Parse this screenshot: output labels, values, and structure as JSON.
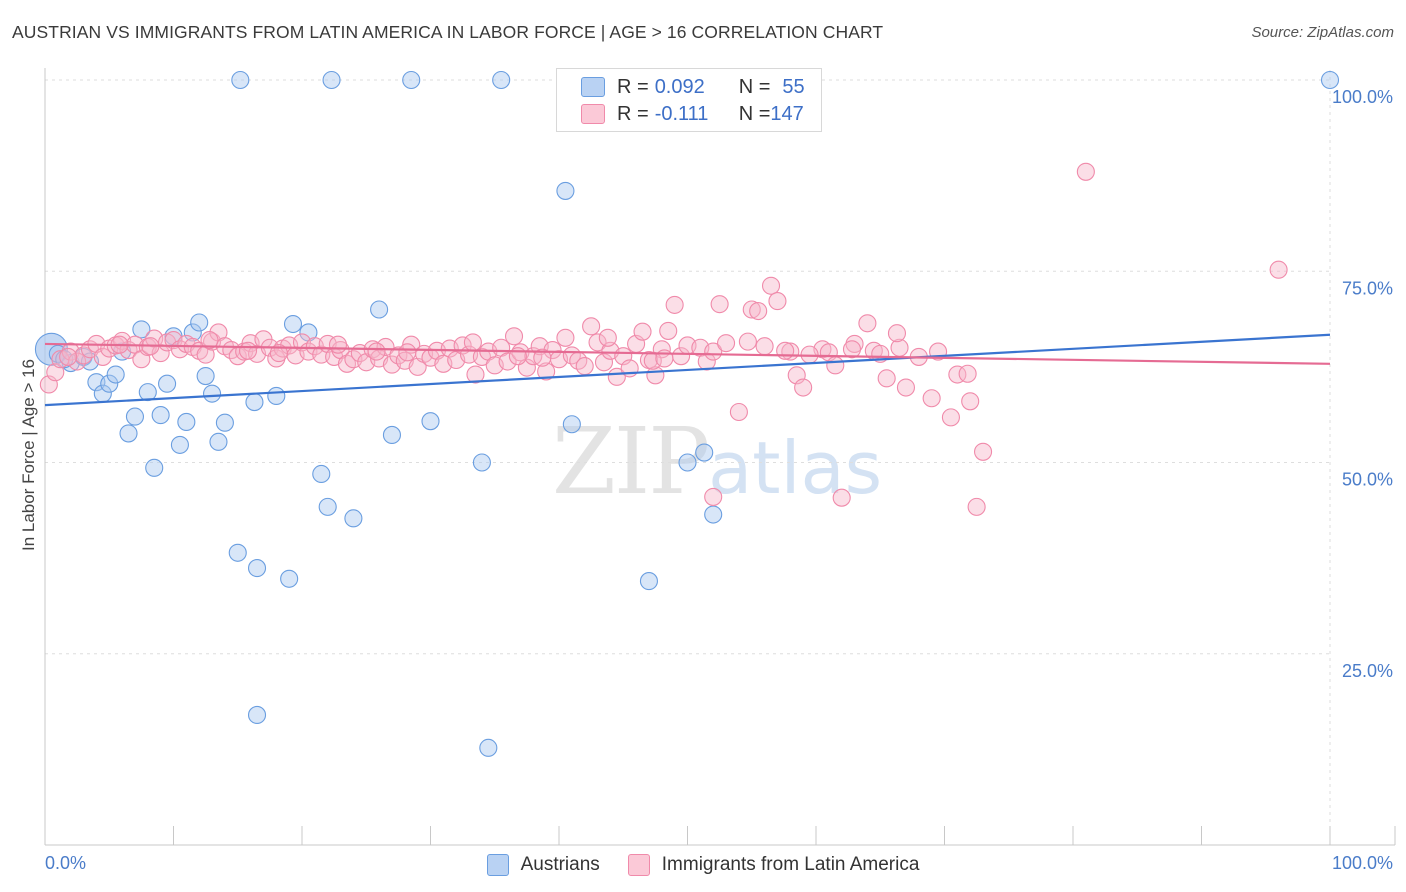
{
  "header": {
    "title": "AUSTRIAN VS IMMIGRANTS FROM LATIN AMERICA IN LABOR FORCE | AGE > 16 CORRELATION CHART",
    "source": "Source: ZipAtlas.com"
  },
  "watermark": {
    "zip": "ZIP",
    "atlas": "atlas"
  },
  "legend": {
    "rows": [
      {
        "r_label": "R = ",
        "r_value": "0.092",
        "n_label": "N = ",
        "n_value": "55",
        "color": "#a9c7f0"
      },
      {
        "r_label": "R = ",
        "r_value": "-0.111",
        "n_label": "N = ",
        "n_value": "147",
        "color": "#f7b5c9"
      }
    ]
  },
  "chart_data": {
    "type": "scatter",
    "ylabel": "In Labor Force | Age > 16",
    "x_tick_labels": [
      "0.0%",
      "100.0%"
    ],
    "y_tick_labels": [
      "100.0%",
      "75.0%",
      "50.0%",
      "25.0%"
    ],
    "y_tick_values": [
      100,
      75,
      50,
      25
    ],
    "xlim": [
      0,
      100
    ],
    "ylim": [
      0,
      100
    ],
    "grid": "horizontal-dashed",
    "series": [
      {
        "name": "Austrians",
        "color": "#6a9ee0",
        "fill": "#a9c7f0",
        "trend": {
          "x": [
            0,
            100
          ],
          "y": [
            57.5,
            66.7
          ],
          "color": "#3a74d0"
        },
        "points": [
          [
            0.5,
            64.8
          ],
          [
            1,
            64.2
          ],
          [
            2,
            63
          ],
          [
            1.5,
            63.5
          ],
          [
            3,
            63.8
          ],
          [
            3.5,
            63.2
          ],
          [
            4,
            60.5
          ],
          [
            4.5,
            59
          ],
          [
            5,
            60.3
          ],
          [
            5.5,
            61.5
          ],
          [
            6,
            64.5
          ],
          [
            6.5,
            53.8
          ],
          [
            7,
            56
          ],
          [
            7.5,
            67.4
          ],
          [
            8,
            59.2
          ],
          [
            8.5,
            49.3
          ],
          [
            9,
            56.2
          ],
          [
            9.5,
            60.3
          ],
          [
            10,
            66.5
          ],
          [
            10.5,
            52.3
          ],
          [
            11,
            55.3
          ],
          [
            11.5,
            67
          ],
          [
            12,
            68.3
          ],
          [
            12.5,
            61.3
          ],
          [
            13,
            59
          ],
          [
            13.5,
            52.7
          ],
          [
            14,
            55.2
          ],
          [
            15,
            38.2
          ],
          [
            15.2,
            100
          ],
          [
            16.5,
            36.2
          ],
          [
            16.5,
            17
          ],
          [
            16.3,
            57.9
          ],
          [
            18,
            58.7
          ],
          [
            19,
            34.8
          ],
          [
            19.3,
            68.1
          ],
          [
            20.5,
            67
          ],
          [
            21.5,
            48.5
          ],
          [
            22,
            44.2
          ],
          [
            22.3,
            100
          ],
          [
            24,
            42.7
          ],
          [
            26,
            70
          ],
          [
            27,
            53.6
          ],
          [
            28.5,
            100
          ],
          [
            30,
            55.4
          ],
          [
            34,
            50
          ],
          [
            34.5,
            12.7
          ],
          [
            35.5,
            100
          ],
          [
            40.5,
            85.5
          ],
          [
            41,
            55
          ],
          [
            47,
            34.5
          ],
          [
            50,
            50
          ],
          [
            51.3,
            51.3
          ],
          [
            52,
            43.2
          ],
          [
            100,
            100
          ]
        ]
      },
      {
        "name": "Immigrants from Latin America",
        "color": "#f08aaa",
        "fill": "#f7b5c9",
        "trend": {
          "x": [
            0,
            100
          ],
          "y": [
            65.5,
            62.9
          ],
          "color": "#e56b93"
        },
        "points": [
          [
            0.3,
            60.2
          ],
          [
            0.8,
            61.8
          ],
          [
            1.2,
            63.5
          ],
          [
            2,
            64.5
          ],
          [
            2.5,
            63.2
          ],
          [
            3,
            64
          ],
          [
            3.5,
            64.8
          ],
          [
            4,
            65.5
          ],
          [
            4.5,
            63.8
          ],
          [
            5,
            64.9
          ],
          [
            5.5,
            65.3
          ],
          [
            6,
            65.9
          ],
          [
            6.5,
            64.7
          ],
          [
            7,
            65.4
          ],
          [
            7.5,
            63.5
          ],
          [
            8,
            65.1
          ],
          [
            8.5,
            66.2
          ],
          [
            9,
            64.3
          ],
          [
            9.5,
            65.7
          ],
          [
            10,
            66
          ],
          [
            10.5,
            64.8
          ],
          [
            11,
            65.5
          ],
          [
            11.5,
            65.1
          ],
          [
            12,
            64.6
          ],
          [
            12.5,
            64.1
          ],
          [
            13,
            65.8
          ],
          [
            13.5,
            67
          ],
          [
            14,
            65.2
          ],
          [
            14.5,
            64.7
          ],
          [
            15,
            63.9
          ],
          [
            15.5,
            64.5
          ],
          [
            16,
            65.6
          ],
          [
            16.5,
            64.2
          ],
          [
            17,
            66.1
          ],
          [
            17.5,
            65
          ],
          [
            18,
            63.6
          ],
          [
            18.5,
            64.9
          ],
          [
            19,
            65.3
          ],
          [
            19.5,
            64
          ],
          [
            20,
            65.7
          ],
          [
            20.5,
            64.5
          ],
          [
            21,
            65.2
          ],
          [
            21.5,
            64.1
          ],
          [
            22,
            65.5
          ],
          [
            22.5,
            63.8
          ],
          [
            23,
            64.7
          ],
          [
            23.5,
            62.9
          ],
          [
            24,
            63.5
          ],
          [
            24.5,
            64.3
          ],
          [
            25,
            63.1
          ],
          [
            25.5,
            64.8
          ],
          [
            26,
            63.6
          ],
          [
            26.5,
            65.1
          ],
          [
            27,
            62.8
          ],
          [
            27.5,
            64
          ],
          [
            28,
            63.3
          ],
          [
            28.5,
            65.4
          ],
          [
            29,
            62.5
          ],
          [
            29.5,
            64.2
          ],
          [
            30,
            63.7
          ],
          [
            30.5,
            64.6
          ],
          [
            31,
            62.9
          ],
          [
            31.5,
            64.9
          ],
          [
            32,
            63.4
          ],
          [
            32.5,
            65.3
          ],
          [
            33,
            64.1
          ],
          [
            33.5,
            61.5
          ],
          [
            34,
            63.8
          ],
          [
            34.5,
            64.5
          ],
          [
            35,
            62.7
          ],
          [
            35.5,
            65
          ],
          [
            36,
            63.2
          ],
          [
            36.5,
            66.5
          ],
          [
            37,
            64.4
          ],
          [
            37.5,
            62.4
          ],
          [
            38,
            63.9
          ],
          [
            38.5,
            65.2
          ],
          [
            39,
            61.9
          ],
          [
            39.5,
            64.7
          ],
          [
            40,
            63.5
          ],
          [
            40.5,
            66.3
          ],
          [
            41,
            64
          ],
          [
            41.5,
            63.3
          ],
          [
            42,
            62.6
          ],
          [
            42.5,
            67.8
          ],
          [
            43,
            65.7
          ],
          [
            43.5,
            63.1
          ],
          [
            44,
            64.6
          ],
          [
            44.5,
            61.2
          ],
          [
            45,
            63.9
          ],
          [
            45.5,
            62.3
          ],
          [
            46,
            65.5
          ],
          [
            46.5,
            67.1
          ],
          [
            47,
            63.4
          ],
          [
            47.5,
            61.4
          ],
          [
            48,
            64.8
          ],
          [
            48.5,
            67.2
          ],
          [
            49,
            70.6
          ],
          [
            49.5,
            63.9
          ],
          [
            50,
            65.3
          ],
          [
            51,
            65
          ],
          [
            51.5,
            63.2
          ],
          [
            52,
            64.5
          ],
          [
            52.5,
            70.7
          ],
          [
            53,
            65.6
          ],
          [
            54,
            56.6
          ],
          [
            55,
            70
          ],
          [
            55.5,
            69.8
          ],
          [
            56,
            65.2
          ],
          [
            56.5,
            73.1
          ],
          [
            57,
            71.1
          ],
          [
            58,
            64.5
          ],
          [
            58.5,
            61.4
          ],
          [
            59,
            59.8
          ],
          [
            60.5,
            64.8
          ],
          [
            61,
            64.4
          ],
          [
            61.5,
            62.7
          ],
          [
            62,
            45.4
          ],
          [
            63,
            65.5
          ],
          [
            64,
            68.2
          ],
          [
            64.5,
            64.6
          ],
          [
            65,
            64.2
          ],
          [
            65.5,
            61
          ],
          [
            66.5,
            65
          ],
          [
            67,
            59.8
          ],
          [
            68,
            63.8
          ],
          [
            69,
            58.4
          ],
          [
            69.5,
            64.5
          ],
          [
            70.5,
            55.9
          ],
          [
            71,
            61.5
          ],
          [
            72,
            58
          ],
          [
            72.5,
            44.2
          ],
          [
            73,
            51.4
          ],
          [
            81,
            88
          ],
          [
            96,
            75.2
          ],
          [
            52,
            45.5
          ],
          [
            47.3,
            63.3
          ],
          [
            36.8,
            63.9
          ],
          [
            25.8,
            64.5
          ],
          [
            15.8,
            64.6
          ],
          [
            71.8,
            61.6
          ],
          [
            66.3,
            66.9
          ],
          [
            59.5,
            64.1
          ],
          [
            54.7,
            65.8
          ],
          [
            43.8,
            66.3
          ],
          [
            33.3,
            65.7
          ],
          [
            22.8,
            65.4
          ],
          [
            12.8,
            66
          ],
          [
            5.8,
            65.4
          ],
          [
            62.8,
            64.8
          ],
          [
            57.6,
            64.6
          ],
          [
            48.2,
            63.6
          ],
          [
            38.7,
            63.7
          ],
          [
            28.2,
            64.4
          ],
          [
            18.2,
            64.3
          ],
          [
            8.2,
            65.2
          ],
          [
            1.8,
            63.8
          ]
        ]
      }
    ]
  },
  "bottom_legend": [
    {
      "label": "Austrians",
      "color": "#a9c7f0"
    },
    {
      "label": "Immigrants from Latin America",
      "color": "#f7b5c9"
    }
  ]
}
